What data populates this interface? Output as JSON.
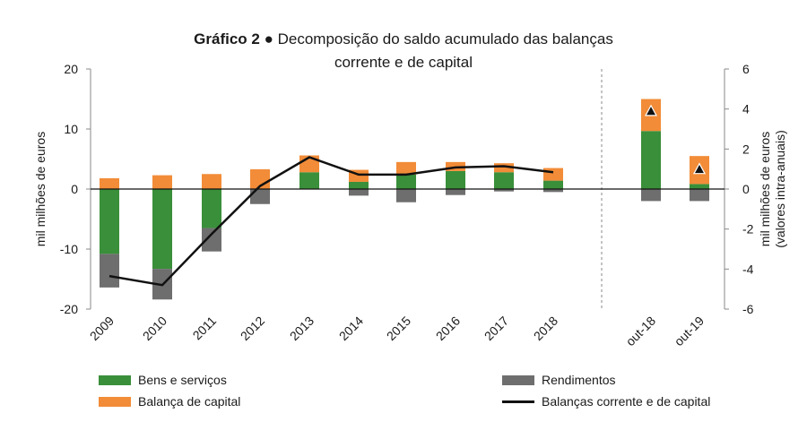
{
  "title": {
    "prefix": "Gráfico 2 ●",
    "line1": "Decomposição  do saldo acumulado  das balanças",
    "line2": "corrente  e de capital"
  },
  "chart_data": {
    "type": "bar",
    "categories": [
      "2009",
      "2010",
      "2011",
      "2012",
      "2013",
      "2014",
      "2015",
      "2016",
      "2017",
      "2018",
      "out-18",
      "out-19"
    ],
    "ylabel_left": "mil milhões de euros",
    "ylabel_right": "mil milhões de euros\n(valores intra-anuais)",
    "ylim_left": [
      -20,
      20
    ],
    "yticks_left": [
      -20,
      -10,
      0,
      10,
      20
    ],
    "ylim_right": [
      -6,
      6
    ],
    "yticks_right": [
      -6,
      -4,
      -2,
      0,
      2,
      4,
      6
    ],
    "stacked": true,
    "series": [
      {
        "name": "Bens e serviços",
        "axis": "left",
        "color": "#3a8f3a",
        "values": [
          -10.8,
          -13.3,
          -6.5,
          0,
          2.8,
          1.2,
          2.4,
          3.0,
          2.8,
          1.4,
          null,
          null
        ]
      },
      {
        "name": "Rendimentos",
        "axis": "left",
        "color": "#6e6e6e",
        "values": [
          -5.6,
          -5.1,
          -3.9,
          -2.5,
          0,
          -1.1,
          -2.2,
          -1.0,
          -0.4,
          -0.5,
          null,
          null
        ]
      },
      {
        "name": "Balança de capital",
        "axis": "left",
        "color": "#f28c38",
        "values": [
          1.8,
          2.3,
          2.5,
          3.3,
          2.8,
          2.0,
          2.1,
          1.5,
          1.5,
          2.1,
          null,
          null
        ]
      },
      {
        "name": "Bens e serviços",
        "axis": "right",
        "color": "#3a8f3a",
        "legend": false,
        "values": [
          null,
          null,
          null,
          null,
          null,
          null,
          null,
          null,
          null,
          null,
          2.9,
          0.25
        ]
      },
      {
        "name": "Rendimentos",
        "axis": "right",
        "color": "#6e6e6e",
        "legend": false,
        "values": [
          null,
          null,
          null,
          null,
          null,
          null,
          null,
          null,
          null,
          null,
          -0.6,
          -0.6
        ]
      },
      {
        "name": "Balança de capital",
        "axis": "right",
        "color": "#f28c38",
        "legend": false,
        "values": [
          null,
          null,
          null,
          null,
          null,
          null,
          null,
          null,
          null,
          null,
          1.6,
          1.4
        ]
      }
    ],
    "line": {
      "name": "Balanças corrente e de capital",
      "axis": "left",
      "color": "#111111",
      "values": [
        -14.5,
        -16.0,
        -7.5,
        0.5,
        5.3,
        2.4,
        2.4,
        3.6,
        3.8,
        2.8
      ]
    },
    "markers": {
      "type": "triangle",
      "axis": "right",
      "categories": [
        "out-18",
        "out-19"
      ],
      "values": [
        3.9,
        1.0
      ]
    },
    "legend": [
      {
        "label": "Bens e serviços",
        "color": "#3a8f3a",
        "kind": "bar"
      },
      {
        "label": "Rendimentos",
        "color": "#6e6e6e",
        "kind": "bar"
      },
      {
        "label": "Balança de capital",
        "color": "#f28c38",
        "kind": "bar"
      },
      {
        "label": "Balanças corrente e de capital",
        "color": "#111111",
        "kind": "line"
      }
    ]
  }
}
